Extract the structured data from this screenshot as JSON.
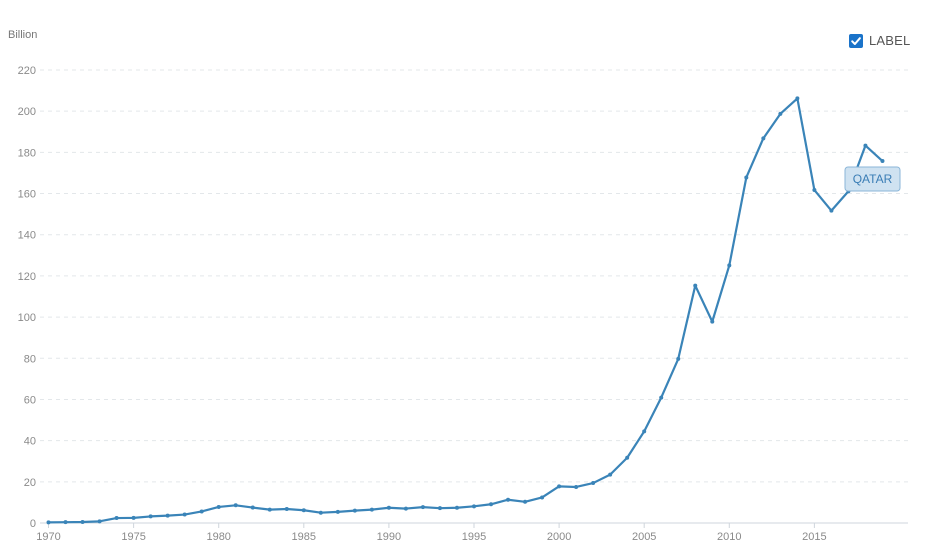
{
  "chart_data": {
    "type": "line",
    "ylabel": "Billion",
    "ylim": [
      0,
      220
    ],
    "yticks": [
      0,
      20,
      40,
      60,
      80,
      100,
      120,
      140,
      160,
      180,
      200,
      220
    ],
    "xlim": [
      1969.5,
      2020.5
    ],
    "xticks": [
      1970,
      1975,
      1980,
      1985,
      1990,
      1995,
      2000,
      2005,
      2010,
      2015
    ],
    "grid": true,
    "legend": {
      "label": "LABEL",
      "checked": true,
      "placement": "top-right"
    },
    "series": [
      {
        "name": "QATAR",
        "color": "#3a84b8",
        "x": [
          1970,
          1971,
          1972,
          1973,
          1974,
          1975,
          1976,
          1977,
          1978,
          1979,
          1980,
          1981,
          1982,
          1983,
          1984,
          1985,
          1986,
          1987,
          1988,
          1989,
          1990,
          1991,
          1992,
          1993,
          1994,
          1995,
          1996,
          1997,
          1998,
          1999,
          2000,
          2001,
          2002,
          2003,
          2004,
          2005,
          2006,
          2007,
          2008,
          2009,
          2010,
          2011,
          2012,
          2013,
          2014,
          2015,
          2016,
          2017,
          2018,
          2019
        ],
        "y": [
          0.3,
          0.4,
          0.5,
          0.8,
          2.4,
          2.5,
          3.2,
          3.6,
          4.1,
          5.6,
          7.8,
          8.6,
          7.5,
          6.5,
          6.8,
          6.2,
          5.0,
          5.4,
          6.0,
          6.5,
          7.4,
          7.0,
          7.7,
          7.2,
          7.4,
          8.1,
          9.1,
          11.3,
          10.3,
          12.4,
          17.8,
          17.5,
          19.4,
          23.5,
          31.7,
          44.5,
          60.9,
          79.7,
          115.3,
          97.8,
          125.1,
          167.8,
          186.8,
          198.7,
          206.2,
          161.7,
          151.7,
          161.1,
          183.3,
          175.8
        ]
      }
    ]
  }
}
